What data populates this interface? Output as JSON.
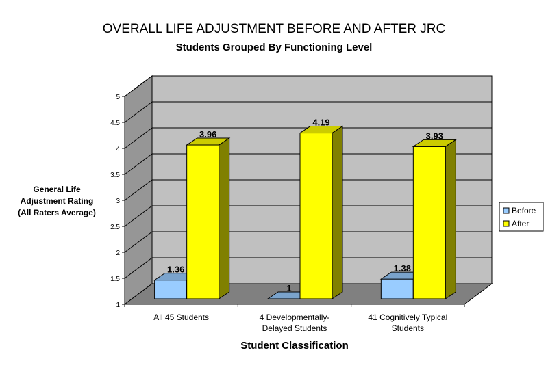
{
  "chart_data": {
    "type": "bar",
    "title": "OVERALL LIFE ADJUSTMENT BEFORE AND AFTER JRC",
    "subtitle": "Students Grouped By Functioning Level",
    "ylabel_lines": [
      "General Life",
      "Adjustment Rating",
      "(All Raters Average)"
    ],
    "xlabel": "Student Classification",
    "ylim": [
      1,
      5
    ],
    "yticks": [
      "1",
      "1.5",
      "2",
      "2.5",
      "3",
      "3.5",
      "4",
      "4.5",
      "5"
    ],
    "categories": [
      [
        "All 45 Students"
      ],
      [
        "4 Developmentally-",
        "Delayed Students"
      ],
      [
        "41 Cognitively Typical",
        "Students"
      ]
    ],
    "series": [
      {
        "name": "Before",
        "values": [
          1.36,
          1,
          1.38
        ],
        "labels": [
          "1.36",
          "1",
          "1.38"
        ]
      },
      {
        "name": "After",
        "values": [
          3.96,
          4.19,
          3.93
        ],
        "labels": [
          "3.96",
          "4.19",
          "3.93"
        ]
      }
    ],
    "legend_position": "right",
    "grid": true,
    "colors": {
      "before_front": "#99ccff",
      "before_side": "#5b7b99",
      "before_top": "#7aa3cc",
      "after_front": "#ffff00",
      "after_side": "#808000",
      "after_top": "#cccc00",
      "wall": "#c0c0c0",
      "wall_side": "#969696",
      "floor": "#808080"
    }
  }
}
